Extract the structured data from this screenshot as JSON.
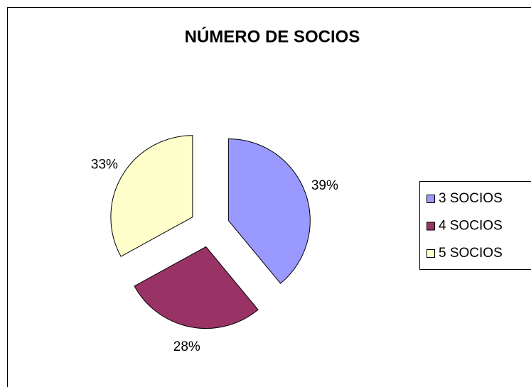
{
  "chart_data": {
    "type": "pie",
    "title": "NÚMERO DE SOCIOS",
    "categories": [
      "3 SOCIOS",
      "4 SOCIOS",
      "5 SOCIOS"
    ],
    "values": [
      39,
      28,
      33
    ],
    "value_labels": [
      "39%",
      "28%",
      "33%"
    ],
    "colors": [
      "#9999ff",
      "#993366",
      "#ffffcc"
    ],
    "exploded": true,
    "legend": "right"
  }
}
